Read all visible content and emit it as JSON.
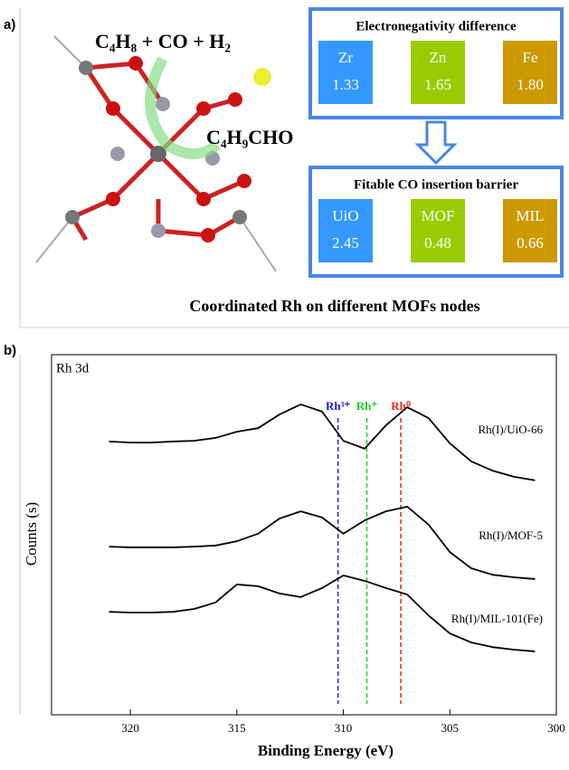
{
  "panel_a": {
    "label": "a)",
    "reactants": "C₄H₈ + CO + H₂",
    "product": "C₄H₉CHO",
    "electronegativity": {
      "title": "Electronegativity difference",
      "items": [
        {
          "name": "Zr",
          "value": "1.33"
        },
        {
          "name": "Zn",
          "value": "1.65"
        },
        {
          "name": "Fe",
          "value": "1.80"
        }
      ]
    },
    "barrier": {
      "title": "Fitable CO insertion barrier",
      "items": [
        {
          "name": "UiO",
          "value": "2.45"
        },
        {
          "name": "MOF",
          "value": "0.48"
        },
        {
          "name": "MIL",
          "value": "0.66"
        }
      ]
    },
    "caption": "Coordinated Rh on different MOFs nodes"
  },
  "chart_data": {
    "type": "line",
    "label": "b)",
    "annotation": "Rh 3d",
    "x_label": "Binding Energy (eV)",
    "y_label": "Counts (s)",
    "xlim": [
      323.7,
      300
    ],
    "xticks": [
      320,
      315,
      310,
      305,
      300
    ],
    "ylim": [
      0,
      100
    ],
    "x": [
      321,
      320,
      319,
      318,
      317,
      316,
      315,
      314,
      313,
      312,
      311,
      310,
      309,
      308,
      307,
      306,
      305,
      304,
      303,
      302,
      301
    ],
    "series": [
      {
        "name": "Rh(I)/UiO-66",
        "color": "#000000",
        "values": [
          75.9,
          75.6,
          75.6,
          75.9,
          76.1,
          76.9,
          78.6,
          79.6,
          83.4,
          86.2,
          84.2,
          76.1,
          73.9,
          80.4,
          85.4,
          82.4,
          75.4,
          70.4,
          67.8,
          66.1,
          65.1
        ]
      },
      {
        "name": "Rh(I)/MOF-5",
        "color": "#000000",
        "values": [
          46.7,
          46.5,
          46.5,
          46.5,
          46.7,
          47.0,
          48.2,
          50.3,
          54.5,
          56.5,
          54.8,
          50.3,
          54.0,
          56.5,
          57.8,
          52.8,
          45.2,
          40.7,
          38.9,
          38.2,
          37.7
        ]
      },
      {
        "name": "Rh(I)/MIL-101(Fe)",
        "color": "#000000",
        "values": [
          28.6,
          28.4,
          28.4,
          28.6,
          29.4,
          31.2,
          36.2,
          35.7,
          33.7,
          32.7,
          35.2,
          38.7,
          37.2,
          35.2,
          33.4,
          27.6,
          22.6,
          20.1,
          18.8,
          18.1,
          17.6
        ]
      }
    ],
    "reference_lines": [
      {
        "label": "Rh³⁺",
        "x": 310.25,
        "color": "#2222dd"
      },
      {
        "label": "Rh⁺",
        "x": 308.9,
        "color": "#22cc22"
      },
      {
        "label": "Rh⁰",
        "x": 307.3,
        "color": "#ee2222"
      }
    ]
  }
}
